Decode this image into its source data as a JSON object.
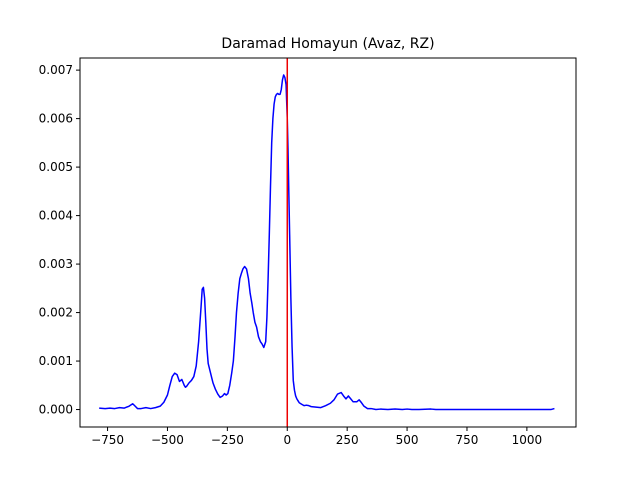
{
  "chart_data": {
    "type": "line",
    "title": "Daramad Homayun (Avaz, RZ)",
    "xlabel": "",
    "ylabel": "",
    "xlim": [
      -865,
      1205
    ],
    "ylim": [
      -0.00036,
      0.00725
    ],
    "x_ticks": [
      -750,
      -500,
      -250,
      0,
      250,
      500,
      750,
      1000
    ],
    "x_tick_labels": [
      "−750",
      "−500",
      "−250",
      "0",
      "250",
      "500",
      "750",
      "1000"
    ],
    "y_ticks": [
      0.0,
      0.001,
      0.002,
      0.003,
      0.004,
      0.005,
      0.006,
      0.007
    ],
    "y_tick_labels": [
      "0.000",
      "0.001",
      "0.002",
      "0.003",
      "0.004",
      "0.005",
      "0.006",
      "0.007"
    ],
    "grid": false,
    "series": [
      {
        "color": "#0000ff",
        "x": [
          -785,
          -760,
          -740,
          -720,
          -700,
          -680,
          -660,
          -645,
          -635,
          -625,
          -610,
          -590,
          -570,
          -550,
          -530,
          -515,
          -500,
          -490,
          -480,
          -470,
          -460,
          -450,
          -440,
          -430,
          -425,
          -420,
          -410,
          -400,
          -390,
          -380,
          -370,
          -360,
          -355,
          -350,
          -345,
          -340,
          -335,
          -330,
          -325,
          -320,
          -315,
          -310,
          -300,
          -290,
          -280,
          -270,
          -262,
          -255,
          -248,
          -240,
          -232,
          -225,
          -218,
          -212,
          -205,
          -198,
          -192,
          -185,
          -178,
          -170,
          -162,
          -155,
          -148,
          -142,
          -135,
          -128,
          -120,
          -112,
          -105,
          -98,
          -90,
          -85,
          -80,
          -75,
          -70,
          -65,
          -60,
          -55,
          -50,
          -45,
          -40,
          -35,
          -30,
          -25,
          -20,
          -15,
          -10,
          -5,
          0,
          3,
          6,
          10,
          15,
          20,
          25,
          30,
          35,
          40,
          45,
          50,
          60,
          70,
          80,
          90,
          100,
          120,
          140,
          160,
          180,
          195,
          210,
          225,
          235,
          245,
          255,
          265,
          275,
          290,
          300,
          310,
          320,
          335,
          350,
          370,
          390,
          420,
          450,
          480,
          500,
          520,
          550,
          600,
          620,
          650,
          700,
          800,
          900,
          1000,
          1100,
          1115
        ],
        "y": [
          3e-05,
          2e-05,
          3e-05,
          2e-05,
          4e-05,
          3e-05,
          7e-05,
          0.00012,
          7e-05,
          2e-05,
          2e-05,
          4e-05,
          2e-05,
          4e-05,
          7e-05,
          0.00015,
          0.0003,
          0.0005,
          0.00068,
          0.00075,
          0.00072,
          0.00058,
          0.00062,
          0.0005,
          0.00046,
          0.00048,
          0.00055,
          0.0006,
          0.00068,
          0.0009,
          0.0014,
          0.0021,
          0.00248,
          0.00252,
          0.0023,
          0.0018,
          0.00125,
          0.00095,
          0.00085,
          0.00075,
          0.00065,
          0.00055,
          0.00042,
          0.00032,
          0.00025,
          0.00028,
          0.00033,
          0.0003,
          0.00033,
          0.0005,
          0.00075,
          0.001,
          0.0015,
          0.002,
          0.0024,
          0.0027,
          0.0028,
          0.0029,
          0.00295,
          0.0029,
          0.0027,
          0.0024,
          0.0022,
          0.002,
          0.0018,
          0.0017,
          0.0015,
          0.0014,
          0.00135,
          0.00128,
          0.0014,
          0.0019,
          0.0027,
          0.0036,
          0.0046,
          0.0055,
          0.006,
          0.0063,
          0.00645,
          0.0065,
          0.00652,
          0.0065,
          0.0065,
          0.0066,
          0.0068,
          0.0069,
          0.00685,
          0.0067,
          0.006,
          0.0054,
          0.0046,
          0.0036,
          0.0023,
          0.0013,
          0.0006,
          0.0004,
          0.00028,
          0.00022,
          0.00018,
          0.00014,
          0.00011,
          8e-05,
          9e-05,
          8e-05,
          6e-05,
          5e-05,
          4e-05,
          8e-05,
          0.00013,
          0.0002,
          0.00032,
          0.00035,
          0.00028,
          0.00022,
          0.00028,
          0.00022,
          0.00016,
          0.00016,
          0.0002,
          0.00014,
          7e-05,
          2e-05,
          2e-05,
          0.0,
          1e-05,
          0.0,
          1e-05,
          0.0,
          1e-05,
          0.0,
          0.0,
          1e-05,
          0.0,
          0.0,
          0.0,
          0.0,
          0.0,
          0.0,
          0.0,
          2e-05
        ]
      }
    ],
    "vline": {
      "x": 0,
      "color": "#ee0000"
    }
  }
}
